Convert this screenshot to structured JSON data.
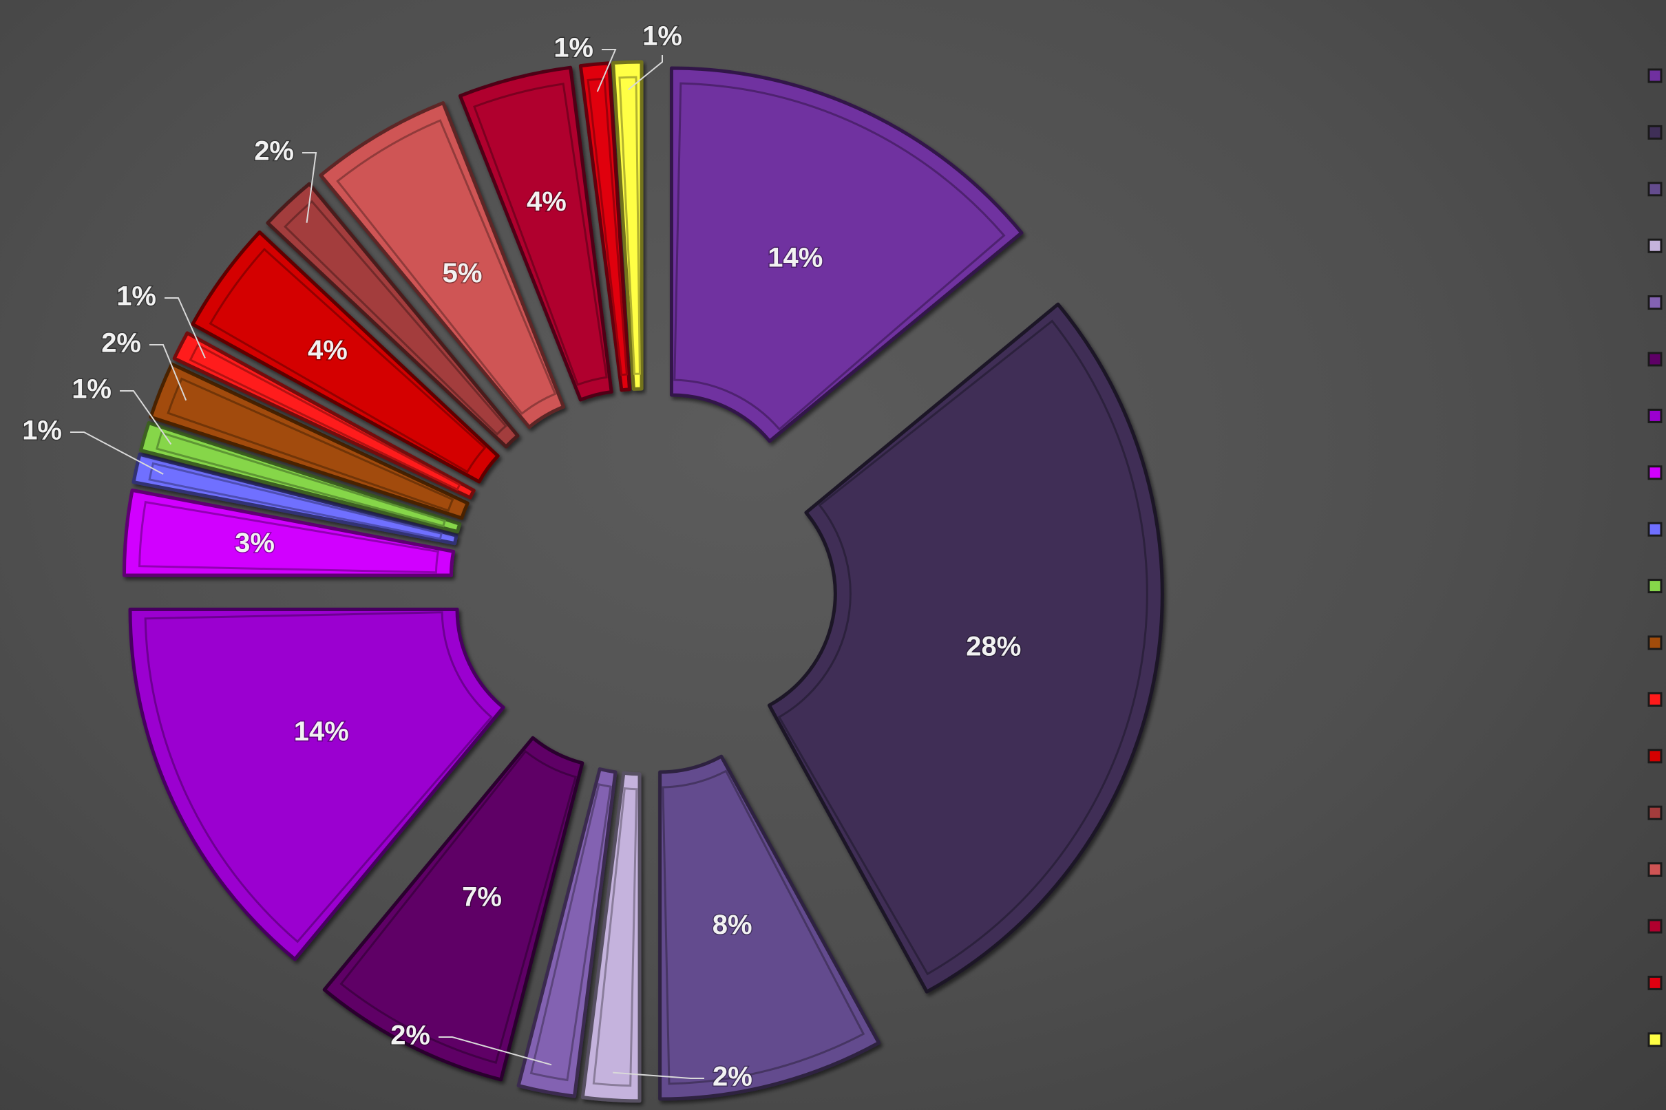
{
  "chart_data": {
    "type": "pie",
    "variant": "exploded-doughnut",
    "title": "",
    "legend_position": "right",
    "slices": [
      {
        "value": 14,
        "label": "14%",
        "color": "#7030a0"
      },
      {
        "value": 28,
        "label": "28%",
        "color": "#3f2f57"
      },
      {
        "value": 8,
        "label": "8%",
        "color": "#644c8e"
      },
      {
        "value": 2,
        "label": "2%",
        "color": "#c5b3dd"
      },
      {
        "value": 2,
        "label": "2%",
        "color": "#8362b2"
      },
      {
        "value": 7,
        "label": "7%",
        "color": "#5e0066"
      },
      {
        "value": 14,
        "label": "14%",
        "color": "#9b00d0"
      },
      {
        "value": 3,
        "label": "3%",
        "color": "#d100ff"
      },
      {
        "value": 1,
        "label": "1%",
        "color": "#6f6fff"
      },
      {
        "value": 1,
        "label": "1%",
        "color": "#86d64a"
      },
      {
        "value": 2,
        "label": "2%",
        "color": "#a24c0b"
      },
      {
        "value": 1,
        "label": "1%",
        "color": "#ff1a1a"
      },
      {
        "value": 4,
        "label": "4%",
        "color": "#d40000"
      },
      {
        "value": 2,
        "label": "2%",
        "color": "#a33c3c"
      },
      {
        "value": 5,
        "label": "5%",
        "color": "#cf5454"
      },
      {
        "value": 4,
        "label": "4%",
        "color": "#b0002e"
      },
      {
        "value": 1,
        "label": "1%",
        "color": "#e00010"
      },
      {
        "value": 1,
        "label": "1%",
        "color": "#ffff44"
      }
    ]
  }
}
